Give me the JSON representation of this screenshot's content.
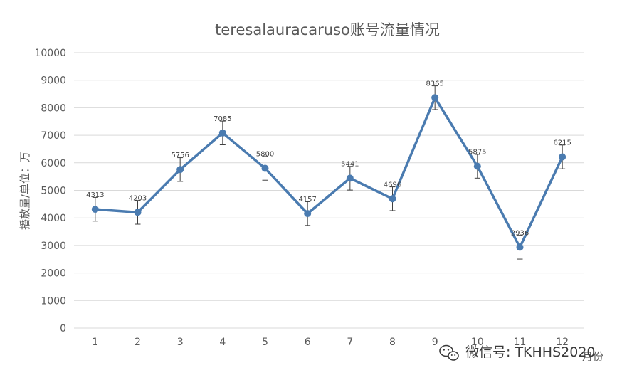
{
  "chart_data": {
    "type": "line",
    "title": "teresalauracaruso账号流量情况",
    "xlabel": "月份",
    "ylabel": "播放量/单位：万",
    "categories": [
      "1",
      "2",
      "3",
      "4",
      "5",
      "6",
      "7",
      "8",
      "9",
      "10",
      "11",
      "12"
    ],
    "series": [
      {
        "values": [
          4313,
          4203,
          5756,
          7085,
          5800,
          4157,
          5441,
          4696,
          8365,
          5875,
          2936,
          6215
        ],
        "data_labels": [
          "4313",
          "4203",
          "5756",
          "7085",
          "5800",
          "4157",
          "5441",
          "4696",
          "8365",
          "5875",
          "2936",
          "6215"
        ],
        "error_bar": 431,
        "color": "#4a7bb0"
      }
    ],
    "ylim": [
      0,
      10000
    ],
    "yticks": [
      0,
      1000,
      2000,
      3000,
      4000,
      5000,
      6000,
      7000,
      8000,
      9000,
      10000
    ],
    "ytick_labels": [
      "0",
      "1000",
      "2000",
      "3000",
      "4000",
      "5000",
      "6000",
      "7000",
      "8000",
      "9000",
      "10000"
    ],
    "grid": true,
    "legend": "none"
  },
  "watermark": {
    "text": "微信号: TKHHS2020",
    "icon": "wechat-icon"
  },
  "colors": {
    "line": "#4a7bb0",
    "grid": "#d9d9d9",
    "text": "#595959",
    "error_bar": "#404040"
  }
}
